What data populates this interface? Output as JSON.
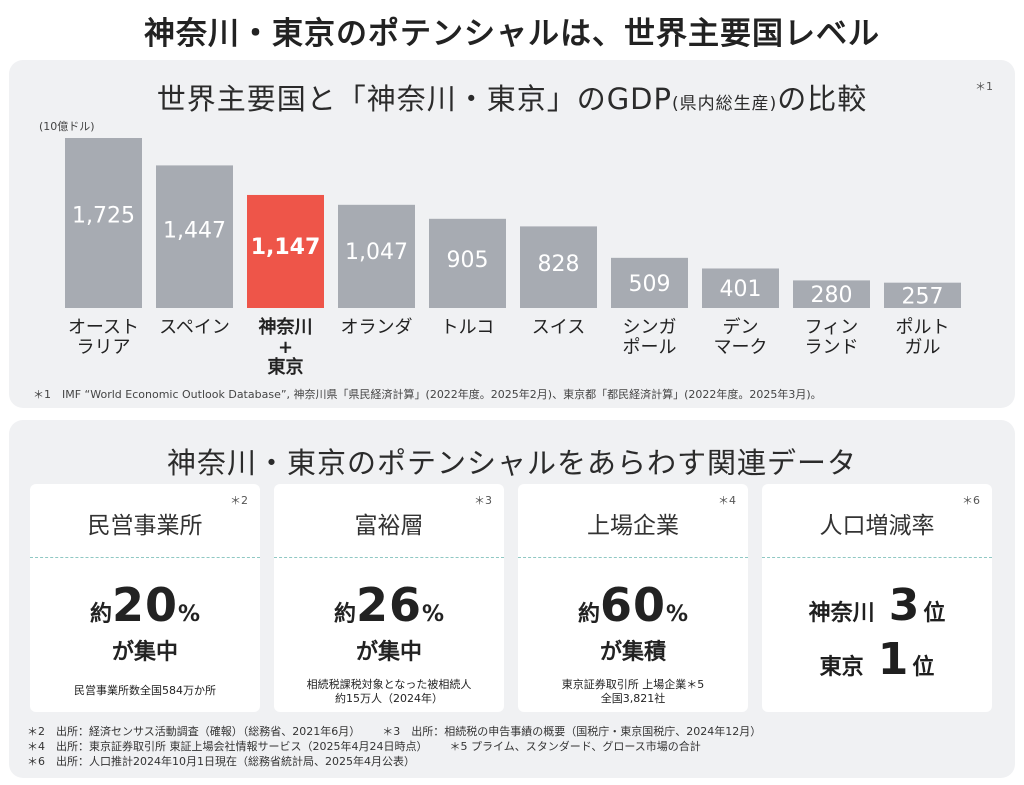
{
  "main_title": "神奈川・東京のポテンシャルは、世界主要国レベル",
  "chart_panel": {
    "title_main": "世界主要国と「神奈川・東京」のGDP",
    "title_paren": "(県内総生産)",
    "title_tail": "の比較",
    "note_tag": "＊1",
    "footnote": "＊1　IMF “World Economic Outlook Database”, 神奈川県「県民経済計算」(2022年度。2025年2月)、東京都「都民経済計算」(2022年度。2025年3月)。"
  },
  "chart_data": {
    "type": "bar",
    "unit_label": "(10億ドル)",
    "categories": [
      [
        "オースト",
        "ラリア"
      ],
      [
        "スペイン"
      ],
      [
        "神奈川",
        "+",
        "東京"
      ],
      [
        "オランダ"
      ],
      [
        "トルコ"
      ],
      [
        "スイス"
      ],
      [
        "シンガ",
        "ポール"
      ],
      [
        "デン",
        "マーク"
      ],
      [
        "フィン",
        "ランド"
      ],
      [
        "ポルト",
        "ガル"
      ]
    ],
    "values": [
      1725,
      1447,
      1147,
      1047,
      905,
      828,
      509,
      401,
      280,
      257
    ],
    "value_labels": [
      "1,725",
      "1,447",
      "1,147",
      "1,047",
      "905",
      "828",
      "509",
      "401",
      "280",
      "257"
    ],
    "highlight_index": 2,
    "bar_color": "#a7abb2",
    "highlight_color": "#ee5549",
    "ylim": [
      0,
      1725
    ]
  },
  "data_section": {
    "title": "神奈川・東京のポテンシャルをあらわす関連データ",
    "cards": [
      {
        "tag": "＊2",
        "title": "民営事業所",
        "prefix": "約",
        "num": "20",
        "unit": "%",
        "sub": "が集中",
        "foot1": "民営事業所数全国584万か所",
        "foot2": ""
      },
      {
        "tag": "＊3",
        "title": "富裕層",
        "prefix": "約",
        "num": "26",
        "unit": "%",
        "sub": "が集中",
        "foot1": "相続税課税対象となった被相続人",
        "foot2": "約15万人（2024年）"
      },
      {
        "tag": "＊4",
        "title": "上場企業",
        "prefix": "約",
        "num": "60",
        "unit": "%",
        "sub": "が集積",
        "foot1": "東京証券取引所 上場企業＊5",
        "foot2": "全国3,821社"
      },
      {
        "tag": "＊6",
        "title": "人口増減率",
        "ranks": [
          {
            "name": "神奈川",
            "num": "3",
            "unit": "位"
          },
          {
            "name": "東京",
            "num": "1",
            "unit": "位"
          }
        ]
      }
    ],
    "footnotes": {
      "fn2": "＊2　出所：経済センサス活動調査（確報）（総務省、2021年6月）",
      "fn3": "＊3　出所：相続税の申告事績の概要（国税庁・東京国税庁、2024年12月）",
      "fn4": "＊4　出所：東京証券取引所 東証上場会社情報サービス（2025年4月24日時点）",
      "fn5": "＊5 プライム、スタンダード、グロース市場の合計",
      "fn6": "＊6　出所：人口推計2024年10月1日現在（総務省統計局、2025年4月公表）"
    }
  }
}
